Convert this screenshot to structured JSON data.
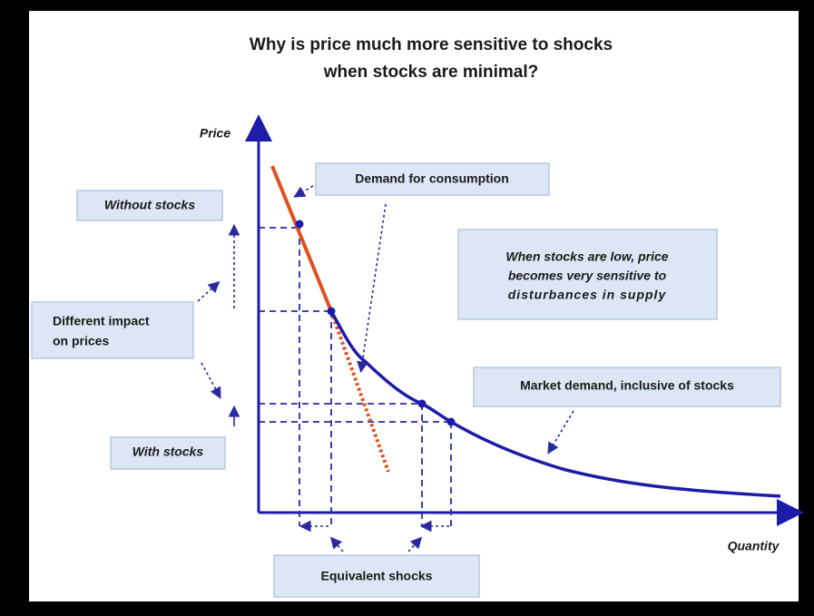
{
  "title": [
    "Why is price much more sensitive to shocks",
    "when stocks are minimal?"
  ],
  "axes": {
    "y_label": "Price",
    "x_label": "Quantity"
  },
  "labels": {
    "demand_for_consumption": "Demand for consumption",
    "without_stocks": "Without stocks",
    "different_impact": [
      "Different impact",
      "on prices"
    ],
    "with_stocks": "With stocks",
    "low_stocks_note": [
      "When stocks are low, price",
      "becomes very sensitive to",
      "disturbances in supply"
    ],
    "market_demand": "Market demand, inclusive of stocks",
    "equivalent_shocks": "Equivalent shocks"
  }
}
